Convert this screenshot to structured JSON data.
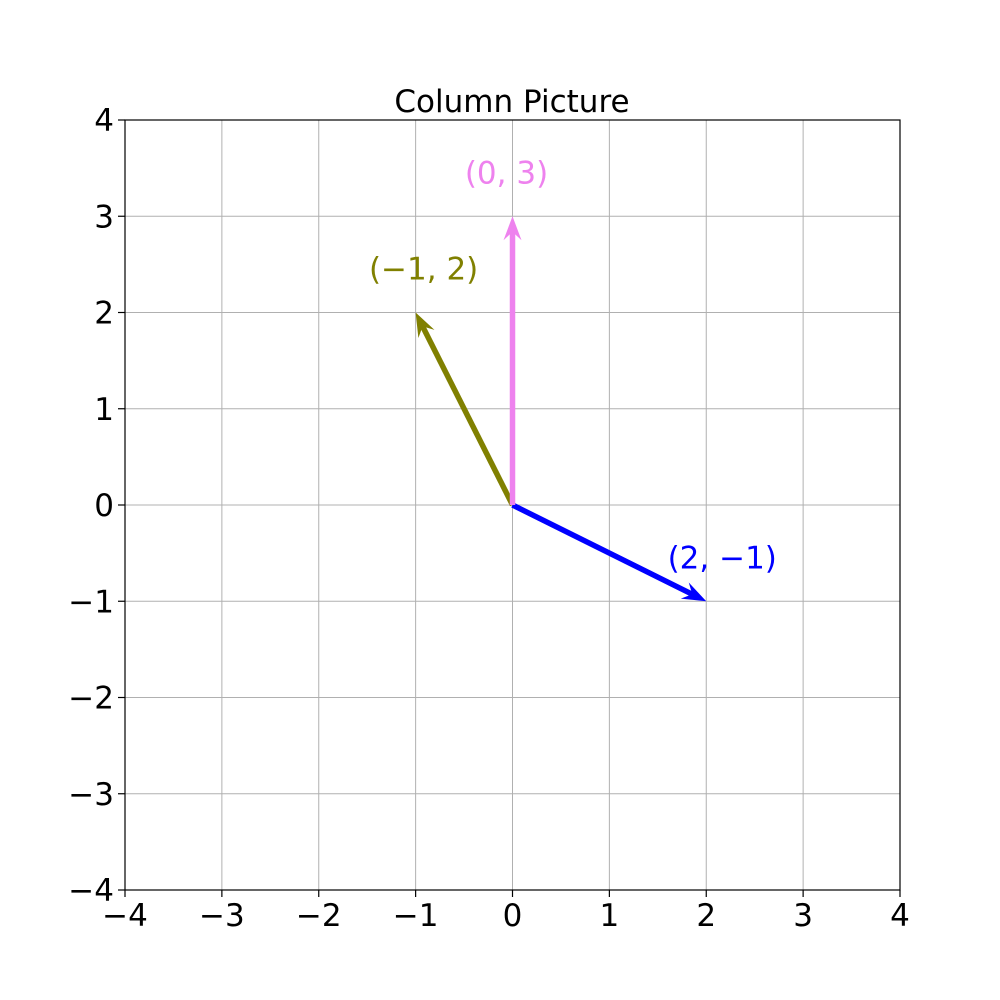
{
  "chart_data": {
    "type": "vector",
    "title": "Column Picture",
    "xlabel": "",
    "ylabel": "",
    "xlim": [
      -4,
      4
    ],
    "ylim": [
      -4,
      4
    ],
    "grid": true,
    "x_ticks": [
      -4,
      -3,
      -2,
      -1,
      0,
      1,
      2,
      3,
      4
    ],
    "y_ticks": [
      -4,
      -3,
      -2,
      -1,
      0,
      1,
      2,
      3,
      4
    ],
    "x_tick_labels": [
      "−4",
      "−3",
      "−2",
      "−1",
      "0",
      "1",
      "2",
      "3",
      "4"
    ],
    "y_tick_labels": [
      "−4",
      "−3",
      "−2",
      "−1",
      "0",
      "1",
      "2",
      "3",
      "4"
    ],
    "vectors": [
      {
        "origin": [
          0,
          0
        ],
        "tip": [
          2,
          -1
        ],
        "label": "(2, −1)",
        "color": "#0000ff"
      },
      {
        "origin": [
          0,
          0
        ],
        "tip": [
          -1,
          2
        ],
        "label": "(−1, 2)",
        "color": "#808000"
      },
      {
        "origin": [
          0,
          0
        ],
        "tip": [
          0,
          3
        ],
        "label": "(0, 3)",
        "color": "#ee82ee"
      }
    ]
  }
}
